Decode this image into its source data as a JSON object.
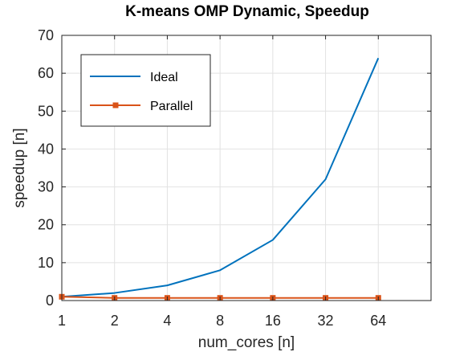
{
  "chart_data": {
    "type": "line",
    "title": "K-means OMP Dynamic, Speedup",
    "xlabel": "num_cores [n]",
    "ylabel": "speedup [n]",
    "x_scale": "log2",
    "x": [
      1,
      2,
      4,
      8,
      16,
      32,
      64
    ],
    "x_tick_labels": [
      "1",
      "2",
      "4",
      "8",
      "16",
      "32",
      "64"
    ],
    "xlim": [
      1,
      128
    ],
    "ylim": [
      0,
      70
    ],
    "y_ticks": [
      0,
      10,
      20,
      30,
      40,
      50,
      60,
      70
    ],
    "grid": true,
    "legend_position": "top-left",
    "series": [
      {
        "name": "Ideal",
        "color": "#0072BD",
        "marker": "none",
        "values": [
          1,
          2,
          4,
          8,
          16,
          32,
          64
        ]
      },
      {
        "name": "Parallel",
        "color": "#D95319",
        "marker": "square",
        "values": [
          1.0,
          0.7,
          0.7,
          0.7,
          0.7,
          0.7,
          0.7
        ]
      }
    ]
  }
}
